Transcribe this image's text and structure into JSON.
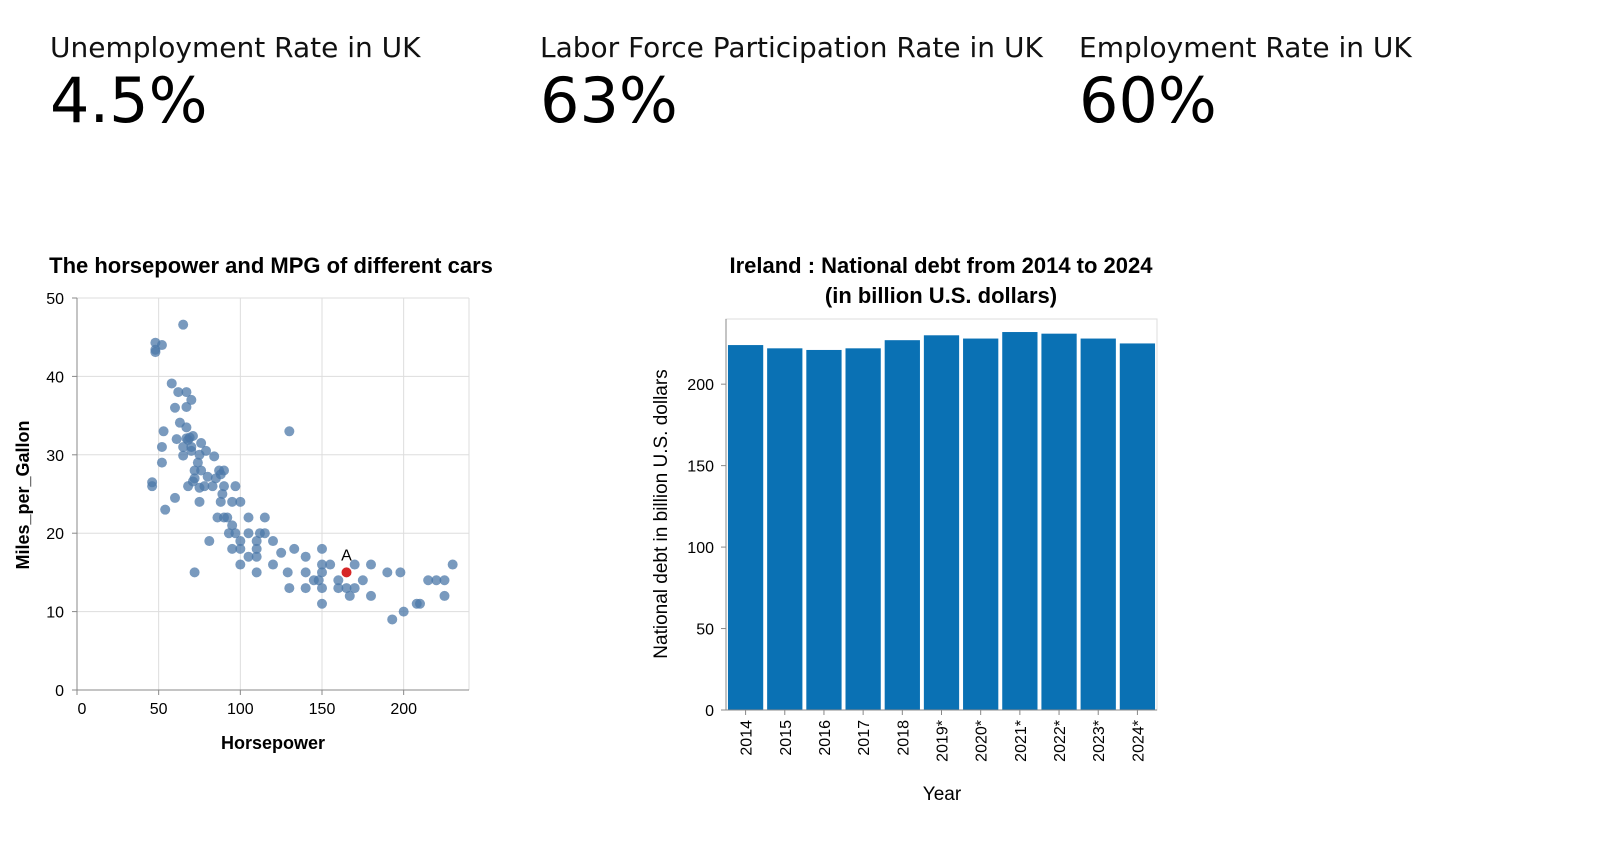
{
  "kpis": [
    {
      "label": "Unemployment Rate in UK",
      "value": "4.5%"
    },
    {
      "label": "Labor Force Participation Rate in UK",
      "value": "63%"
    },
    {
      "label": "Employment Rate in UK",
      "value": "60%"
    }
  ],
  "chart_data": [
    {
      "type": "scatter",
      "title": "The horsepower and MPG of different cars",
      "xlabel": "Horsepower",
      "ylabel": "Miles_per_Gallon",
      "xlim": [
        0,
        240
      ],
      "ylim": [
        0,
        50
      ],
      "xticks": [
        0,
        50,
        100,
        150,
        200
      ],
      "yticks": [
        0,
        10,
        20,
        30,
        40,
        50
      ],
      "grid": true,
      "point_color": "#4c78a8",
      "highlight_color": "#d62728",
      "highlight": {
        "label": "A",
        "x": 165,
        "y": 15
      },
      "points": [
        [
          46,
          26
        ],
        [
          46,
          26.5
        ],
        [
          48,
          43.4
        ],
        [
          48,
          44.3
        ],
        [
          48,
          43.1
        ],
        [
          52,
          31
        ],
        [
          52,
          29
        ],
        [
          52,
          44
        ],
        [
          53,
          33
        ],
        [
          54,
          23
        ],
        [
          58,
          39.1
        ],
        [
          60,
          36
        ],
        [
          60,
          24.5
        ],
        [
          61,
          32
        ],
        [
          62,
          38
        ],
        [
          63,
          34.1
        ],
        [
          65,
          29.9
        ],
        [
          65,
          31
        ],
        [
          65,
          46.6
        ],
        [
          67,
          32.1
        ],
        [
          67,
          36.1
        ],
        [
          67,
          33.5
        ],
        [
          67,
          38
        ],
        [
          68,
          31.9
        ],
        [
          68,
          26
        ],
        [
          69,
          32.2
        ],
        [
          70,
          37
        ],
        [
          70,
          30.5
        ],
        [
          70,
          31
        ],
        [
          71,
          32.4
        ],
        [
          71,
          26.6
        ],
        [
          72,
          15
        ],
        [
          72,
          27
        ],
        [
          72,
          28
        ],
        [
          74,
          29
        ],
        [
          75,
          24
        ],
        [
          75,
          30
        ],
        [
          75,
          25.8
        ],
        [
          76,
          31.5
        ],
        [
          76,
          28
        ],
        [
          78,
          26
        ],
        [
          79,
          30.5
        ],
        [
          80,
          27.2
        ],
        [
          81,
          19
        ],
        [
          83,
          26
        ],
        [
          84,
          29.8
        ],
        [
          85,
          27
        ],
        [
          86,
          22
        ],
        [
          87,
          28
        ],
        [
          88,
          24
        ],
        [
          88,
          27.5
        ],
        [
          89,
          25
        ],
        [
          90,
          22
        ],
        [
          90,
          26
        ],
        [
          90,
          28
        ],
        [
          92,
          22
        ],
        [
          93,
          20
        ],
        [
          95,
          24
        ],
        [
          95,
          21
        ],
        [
          95,
          18
        ],
        [
          97,
          26
        ],
        [
          97,
          20
        ],
        [
          100,
          18
        ],
        [
          100,
          19
        ],
        [
          100,
          24
        ],
        [
          100,
          16
        ],
        [
          105,
          20
        ],
        [
          105,
          17
        ],
        [
          105,
          22
        ],
        [
          110,
          19
        ],
        [
          110,
          18
        ],
        [
          110,
          17
        ],
        [
          110,
          15
        ],
        [
          112,
          20
        ],
        [
          115,
          20
        ],
        [
          115,
          22
        ],
        [
          120,
          19
        ],
        [
          120,
          16
        ],
        [
          125,
          17.5
        ],
        [
          129,
          15
        ],
        [
          130,
          33
        ],
        [
          130,
          13
        ],
        [
          133,
          18
        ],
        [
          140,
          13
        ],
        [
          140,
          17
        ],
        [
          140,
          15
        ],
        [
          145,
          14
        ],
        [
          148,
          14
        ],
        [
          150,
          13
        ],
        [
          150,
          15
        ],
        [
          150,
          11
        ],
        [
          150,
          16
        ],
        [
          150,
          18
        ],
        [
          155,
          16
        ],
        [
          160,
          14
        ],
        [
          160,
          13
        ],
        [
          165,
          13
        ],
        [
          167,
          12
        ],
        [
          170,
          13
        ],
        [
          170,
          16
        ],
        [
          175,
          14
        ],
        [
          180,
          12
        ],
        [
          180,
          16
        ],
        [
          190,
          15
        ],
        [
          193,
          9
        ],
        [
          198,
          15
        ],
        [
          200,
          10
        ],
        [
          208,
          11
        ],
        [
          210,
          11
        ],
        [
          215,
          14
        ],
        [
          220,
          14
        ],
        [
          225,
          12
        ],
        [
          225,
          14
        ],
        [
          230,
          16
        ]
      ]
    },
    {
      "type": "bar",
      "title": "Ireland : National debt from 2014 to 2024",
      "subtitle": "(in billion U.S. dollars)",
      "xlabel": "Year",
      "ylabel": "National debt in billion U.S. dollars",
      "categories": [
        "2014",
        "2015",
        "2016",
        "2017",
        "2018",
        "2019*",
        "2020*",
        "2021*",
        "2022*",
        "2023*",
        "2024*"
      ],
      "values": [
        224,
        222,
        221,
        222,
        227,
        230,
        228,
        232,
        231,
        228,
        225
      ],
      "ylim": [
        0,
        240
      ],
      "yticks": [
        0,
        50,
        100,
        150,
        200
      ],
      "bar_color": "#0a71b4",
      "grid": false
    }
  ]
}
